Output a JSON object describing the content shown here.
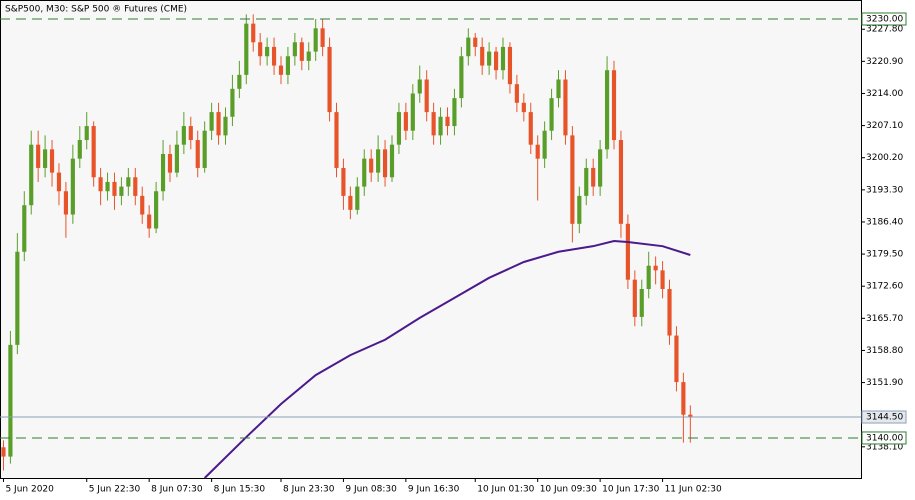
{
  "chart_data": {
    "type": "candlestick",
    "title": "S&P500, M30:  S&P 500 ® Futures (CME)",
    "up_color": "#5a9e2a",
    "down_color": "#e8542a",
    "ma_color": "#4b1a8c",
    "level_color": "#2e7d32",
    "current_color": "#8ca0b4",
    "ylim": [
      3131.4,
      3234.08
    ],
    "yticks": [
      {
        "value": 3138.1,
        "label": "3138.10"
      },
      {
        "value": 3151.9,
        "label": "3151.90"
      },
      {
        "value": 3158.8,
        "label": "3158.80"
      },
      {
        "value": 3165.7,
        "label": "3165.70"
      },
      {
        "value": 3172.6,
        "label": "3172.60"
      },
      {
        "value": 3179.5,
        "label": "3179.50"
      },
      {
        "value": 3186.4,
        "label": "3186.40"
      },
      {
        "value": 3193.3,
        "label": "3193.30"
      },
      {
        "value": 3200.2,
        "label": "3200.20"
      },
      {
        "value": 3207.1,
        "label": "3207.10"
      },
      {
        "value": 3214,
        "label": "3214.00"
      },
      {
        "value": 3220.9,
        "label": "3220.90"
      },
      {
        "value": 3227.8,
        "label": "3227.80"
      }
    ],
    "xlim": [
      -0.5,
      123.6
    ],
    "xticks": [
      {
        "value": 0,
        "label": "5 Jun 2020"
      },
      {
        "value": 12,
        "label": "5 Jun 22:30"
      },
      {
        "value": 21,
        "label": "8 Jun 07:30"
      },
      {
        "value": 30,
        "label": "8 Jun 15:30"
      },
      {
        "value": 40,
        "label": "8 Jun 23:30"
      },
      {
        "value": 49,
        "label": "9 Jun 08:30"
      },
      {
        "value": 58,
        "label": "9 Jun 16:30"
      },
      {
        "value": 68,
        "label": "10 Jun 01:30"
      },
      {
        "value": 77,
        "label": "10 Jun 09:30"
      },
      {
        "value": 86,
        "label": "10 Jun 17:30"
      },
      {
        "value": 95,
        "label": "11 Jun 02:30"
      }
    ],
    "levels": [
      {
        "value": 3230,
        "label": "3230.00"
      },
      {
        "value": 3140,
        "label": "3140.00"
      }
    ],
    "current": {
      "value": 3144.5,
      "label": "3144.50"
    },
    "candles": [
      [
        3138,
        3139.5,
        3133,
        3136
      ],
      [
        3136,
        3163,
        3134.5,
        3160
      ],
      [
        3160,
        3184,
        3158,
        3180
      ],
      [
        3180,
        3193,
        3178,
        3190
      ],
      [
        3190,
        3206,
        3188,
        3203
      ],
      [
        3203,
        3206,
        3195,
        3198
      ],
      [
        3198,
        3205,
        3196,
        3202
      ],
      [
        3202,
        3204,
        3194,
        3197
      ],
      [
        3197,
        3199,
        3190,
        3193
      ],
      [
        3193,
        3195,
        3183,
        3188
      ],
      [
        3188,
        3203,
        3186,
        3200
      ],
      [
        3200,
        3207,
        3198,
        3204
      ],
      [
        3204,
        3210,
        3202,
        3207
      ],
      [
        3207,
        3208,
        3194,
        3196
      ],
      [
        3196,
        3198,
        3190,
        3193
      ],
      [
        3193,
        3197,
        3191,
        3195
      ],
      [
        3195,
        3197,
        3189,
        3192
      ],
      [
        3192,
        3196,
        3190,
        3194
      ],
      [
        3194,
        3198,
        3192,
        3196
      ],
      [
        3196,
        3198,
        3190,
        3192
      ],
      [
        3192,
        3194,
        3186,
        3188
      ],
      [
        3188,
        3190,
        3183,
        3185
      ],
      [
        3185,
        3195,
        3184,
        3193
      ],
      [
        3193,
        3204,
        3191,
        3201
      ],
      [
        3201,
        3203,
        3195,
        3197
      ],
      [
        3197,
        3206,
        3196,
        3203
      ],
      [
        3203,
        3210,
        3201,
        3207
      ],
      [
        3207,
        3209,
        3202,
        3204
      ],
      [
        3204,
        3206,
        3196,
        3198
      ],
      [
        3198,
        3208,
        3197,
        3206
      ],
      [
        3206,
        3212,
        3204,
        3210
      ],
      [
        3210,
        3212,
        3203,
        3205
      ],
      [
        3205,
        3211,
        3203,
        3209
      ],
      [
        3209,
        3218,
        3207,
        3215
      ],
      [
        3215,
        3221,
        3213,
        3218
      ],
      [
        3218,
        3231,
        3216,
        3229
      ],
      [
        3229,
        3231,
        3223,
        3225
      ],
      [
        3225,
        3227,
        3220,
        3222
      ],
      [
        3222,
        3226,
        3220,
        3224
      ],
      [
        3224,
        3226,
        3218,
        3220
      ],
      [
        3220,
        3222,
        3216,
        3218
      ],
      [
        3218,
        3224,
        3216,
        3222
      ],
      [
        3222,
        3227,
        3220,
        3225
      ],
      [
        3225,
        3226,
        3219,
        3221
      ],
      [
        3221,
        3225,
        3219,
        3223
      ],
      [
        3223,
        3230,
        3221,
        3228
      ],
      [
        3228,
        3230,
        3222,
        3224
      ],
      [
        3224,
        3226,
        3208,
        3210
      ],
      [
        3210,
        3212,
        3196,
        3198
      ],
      [
        3198,
        3200,
        3189,
        3192
      ],
      [
        3192,
        3194,
        3187,
        3189
      ],
      [
        3189,
        3196,
        3188,
        3194
      ],
      [
        3194,
        3202,
        3192,
        3200
      ],
      [
        3200,
        3202,
        3195,
        3197
      ],
      [
        3197,
        3205,
        3195,
        3202
      ],
      [
        3202,
        3204,
        3194,
        3196
      ],
      [
        3196,
        3205,
        3195,
        3203
      ],
      [
        3203,
        3212,
        3201,
        3210
      ],
      [
        3210,
        3212,
        3204,
        3206
      ],
      [
        3206,
        3216,
        3204,
        3214
      ],
      [
        3214,
        3220,
        3212,
        3217
      ],
      [
        3217,
        3219,
        3208,
        3210
      ],
      [
        3210,
        3212,
        3203,
        3205
      ],
      [
        3205,
        3211,
        3203,
        3209
      ],
      [
        3209,
        3211,
        3205,
        3207
      ],
      [
        3207,
        3215,
        3205,
        3213
      ],
      [
        3213,
        3224,
        3211,
        3222
      ],
      [
        3222,
        3228,
        3220,
        3226
      ],
      [
        3226,
        3227,
        3222,
        3224
      ],
      [
        3224,
        3226,
        3218,
        3220
      ],
      [
        3220,
        3225,
        3218,
        3223
      ],
      [
        3223,
        3224,
        3217,
        3219
      ],
      [
        3219,
        3226,
        3217,
        3224
      ],
      [
        3224,
        3225,
        3214,
        3216
      ],
      [
        3216,
        3218,
        3210,
        3212
      ],
      [
        3212,
        3214,
        3208,
        3210
      ],
      [
        3210,
        3212,
        3201,
        3203
      ],
      [
        3203,
        3205,
        3191,
        3200
      ],
      [
        3200,
        3208,
        3198,
        3206
      ],
      [
        3206,
        3215,
        3204,
        3213
      ],
      [
        3213,
        3219,
        3211,
        3217
      ],
      [
        3217,
        3219,
        3203,
        3205
      ],
      [
        3205,
        3207,
        3182,
        3186
      ],
      [
        3186,
        3194,
        3184,
        3192
      ],
      [
        3192,
        3200,
        3190,
        3198
      ],
      [
        3198,
        3200,
        3192,
        3194
      ],
      [
        3194,
        3204,
        3192,
        3202
      ],
      [
        3202,
        3222,
        3200,
        3219
      ],
      [
        3219,
        3221,
        3202,
        3204
      ],
      [
        3204,
        3206,
        3183,
        3186
      ],
      [
        3186,
        3188,
        3172,
        3174
      ],
      [
        3174,
        3176,
        3164,
        3166
      ],
      [
        3166,
        3174,
        3164,
        3172
      ],
      [
        3172,
        3180,
        3170,
        3177
      ],
      [
        3177,
        3179,
        3173,
        3176
      ],
      [
        3176,
        3178,
        3170,
        3172
      ],
      [
        3172,
        3174,
        3160,
        3162
      ],
      [
        3162,
        3164,
        3150,
        3152
      ],
      [
        3152,
        3154,
        3139,
        3145
      ],
      [
        3145,
        3147,
        3139,
        3144.5
      ]
    ],
    "ma_x": [
      29,
      35,
      40,
      45,
      50,
      55,
      60,
      65,
      70,
      75,
      80,
      85,
      88,
      90,
      95,
      99
    ],
    "ma_values": [
      3131.4,
      3140.2,
      3147.3,
      3153.5,
      3157.8,
      3161.1,
      3165.8,
      3170.1,
      3174.4,
      3177.8,
      3180,
      3181.2,
      3182.3,
      3182.1,
      3181.2,
      3179.3
    ]
  }
}
